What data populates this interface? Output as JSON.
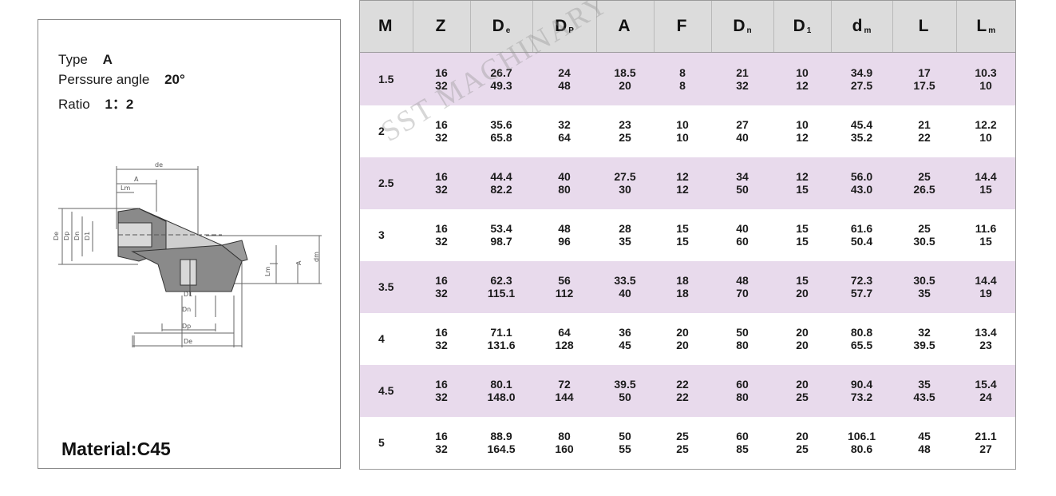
{
  "spec": {
    "type_label": "Type",
    "type_value": "A",
    "angle_label": "Perssure angle",
    "angle_value": "20°",
    "ratio_label": "Ratio",
    "ratio_value": "1：2",
    "material": "Material:C45"
  },
  "drawing_labels": {
    "de_top": "de",
    "a": "A",
    "lm": "Lm",
    "de_side": "De",
    "dp_side": "Dp",
    "dn_side": "Dn",
    "d1_side": "D1",
    "lm_right": "Lm",
    "a_right": "A",
    "dm_right": "dm",
    "d1_bottom": "D1",
    "dn_bottom": "Dn",
    "dp_bottom": "Dp",
    "de_bottom": "De"
  },
  "watermark": "SST MACHINARY",
  "table": {
    "headers": [
      {
        "main": "M",
        "sub": ""
      },
      {
        "main": "Z",
        "sub": ""
      },
      {
        "main": "D",
        "sub": "e"
      },
      {
        "main": "D",
        "sub": "P"
      },
      {
        "main": "A",
        "sub": ""
      },
      {
        "main": "F",
        "sub": ""
      },
      {
        "main": "D",
        "sub": "n"
      },
      {
        "main": "D",
        "sub": "1"
      },
      {
        "main": "d",
        "sub": "m"
      },
      {
        "main": "L",
        "sub": ""
      },
      {
        "main": "L",
        "sub": "m"
      }
    ],
    "rows": [
      {
        "m": "1.5",
        "cells": [
          [
            "16",
            "32"
          ],
          [
            "26.7",
            "49.3"
          ],
          [
            "24",
            "48"
          ],
          [
            "18.5",
            "20"
          ],
          [
            "8",
            "8"
          ],
          [
            "21",
            "32"
          ],
          [
            "10",
            "12"
          ],
          [
            "34.9",
            "27.5"
          ],
          [
            "17",
            "17.5"
          ],
          [
            "10.3",
            "10"
          ]
        ]
      },
      {
        "m": "2",
        "cells": [
          [
            "16",
            "32"
          ],
          [
            "35.6",
            "65.8"
          ],
          [
            "32",
            "64"
          ],
          [
            "23",
            "25"
          ],
          [
            "10",
            "10"
          ],
          [
            "27",
            "40"
          ],
          [
            "10",
            "12"
          ],
          [
            "45.4",
            "35.2"
          ],
          [
            "21",
            "22"
          ],
          [
            "12.2",
            "10"
          ]
        ]
      },
      {
        "m": "2.5",
        "cells": [
          [
            "16",
            "32"
          ],
          [
            "44.4",
            "82.2"
          ],
          [
            "40",
            "80"
          ],
          [
            "27.5",
            "30"
          ],
          [
            "12",
            "12"
          ],
          [
            "34",
            "50"
          ],
          [
            "12",
            "15"
          ],
          [
            "56.0",
            "43.0"
          ],
          [
            "25",
            "26.5"
          ],
          [
            "14.4",
            "15"
          ]
        ]
      },
      {
        "m": "3",
        "cells": [
          [
            "16",
            "32"
          ],
          [
            "53.4",
            "98.7"
          ],
          [
            "48",
            "96"
          ],
          [
            "28",
            "35"
          ],
          [
            "15",
            "15"
          ],
          [
            "40",
            "60"
          ],
          [
            "15",
            "15"
          ],
          [
            "61.6",
            "50.4"
          ],
          [
            "25",
            "30.5"
          ],
          [
            "11.6",
            "15"
          ]
        ]
      },
      {
        "m": "3.5",
        "cells": [
          [
            "16",
            "32"
          ],
          [
            "62.3",
            "115.1"
          ],
          [
            "56",
            "112"
          ],
          [
            "33.5",
            "40"
          ],
          [
            "18",
            "18"
          ],
          [
            "48",
            "70"
          ],
          [
            "15",
            "20"
          ],
          [
            "72.3",
            "57.7"
          ],
          [
            "30.5",
            "35"
          ],
          [
            "14.4",
            "19"
          ]
        ]
      },
      {
        "m": "4",
        "cells": [
          [
            "16",
            "32"
          ],
          [
            "71.1",
            "131.6"
          ],
          [
            "64",
            "128"
          ],
          [
            "36",
            "45"
          ],
          [
            "20",
            "20"
          ],
          [
            "50",
            "80"
          ],
          [
            "20",
            "20"
          ],
          [
            "80.8",
            "65.5"
          ],
          [
            "32",
            "39.5"
          ],
          [
            "13.4",
            "23"
          ]
        ]
      },
      {
        "m": "4.5",
        "cells": [
          [
            "16",
            "32"
          ],
          [
            "80.1",
            "148.0"
          ],
          [
            "72",
            "144"
          ],
          [
            "39.5",
            "50"
          ],
          [
            "22",
            "22"
          ],
          [
            "60",
            "80"
          ],
          [
            "20",
            "25"
          ],
          [
            "90.4",
            "73.2"
          ],
          [
            "35",
            "43.5"
          ],
          [
            "15.4",
            "24"
          ]
        ]
      },
      {
        "m": "5",
        "cells": [
          [
            "16",
            "32"
          ],
          [
            "88.9",
            "164.5"
          ],
          [
            "80",
            "160"
          ],
          [
            "50",
            "55"
          ],
          [
            "25",
            "25"
          ],
          [
            "60",
            "85"
          ],
          [
            "20",
            "25"
          ],
          [
            "106.1",
            "80.6"
          ],
          [
            "45",
            "48"
          ],
          [
            "21.1",
            "27"
          ]
        ]
      }
    ]
  }
}
